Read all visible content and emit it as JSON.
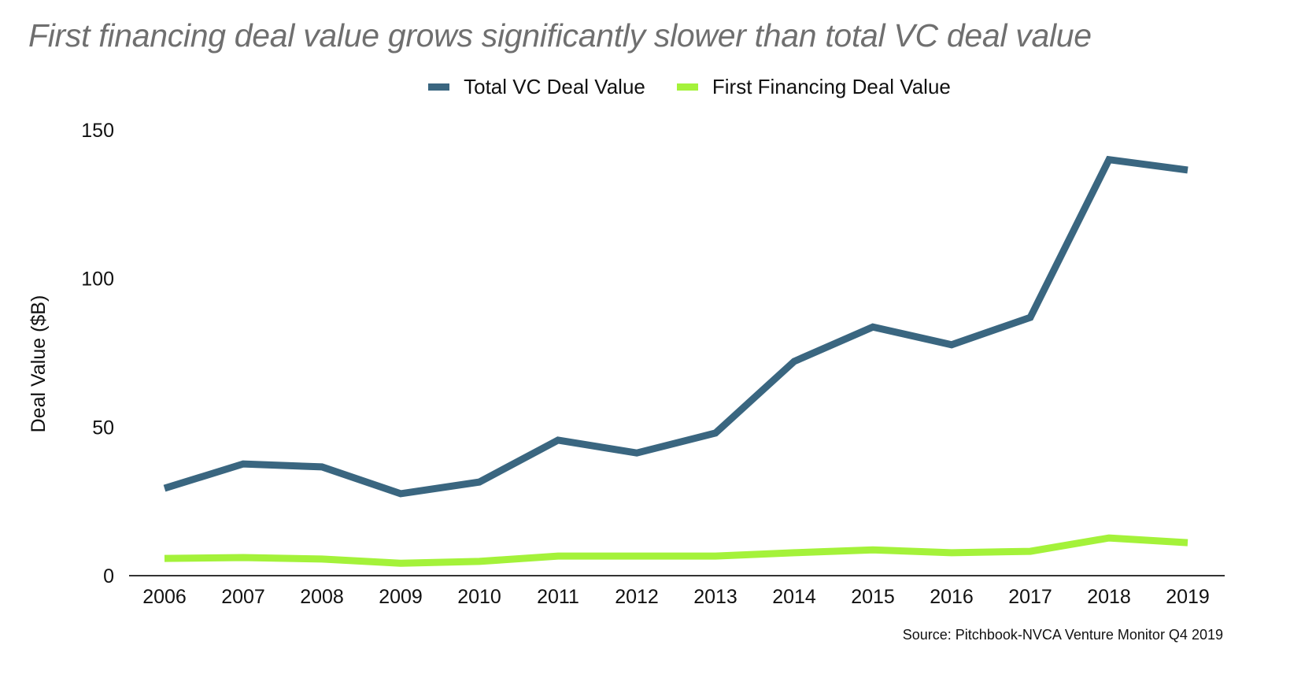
{
  "chart_data": {
    "type": "line",
    "title": "First financing deal value grows significantly slower than total VC deal value",
    "xlabel": "",
    "ylabel": "Deal Value ($B)",
    "x": [
      "2006",
      "2007",
      "2008",
      "2009",
      "2010",
      "2011",
      "2012",
      "2013",
      "2014",
      "2015",
      "2016",
      "2017",
      "2018",
      "2019"
    ],
    "ylim": [
      0,
      150
    ],
    "yticks": [
      0,
      50,
      100,
      150
    ],
    "ytick_labels": [
      "0",
      "50",
      "100",
      "150"
    ],
    "grid": false,
    "legend_position": "top-center",
    "series": [
      {
        "name": "Total VC Deal Value",
        "color": "#3a6680",
        "values": [
          29.4,
          37.6,
          36.6,
          27.6,
          31.5,
          45.6,
          41.3,
          48.0,
          72.1,
          83.7,
          77.7,
          86.9,
          140.0,
          136.5
        ]
      },
      {
        "name": "First Financing Deal Value",
        "color": "#a4f23a",
        "values": [
          5.8,
          6.1,
          5.6,
          4.2,
          4.8,
          6.6,
          6.6,
          6.6,
          7.7,
          8.7,
          7.7,
          8.2,
          12.7,
          11.1
        ]
      }
    ],
    "source": "Source: Pitchbook-NVCA Venture Monitor Q4 2019"
  }
}
